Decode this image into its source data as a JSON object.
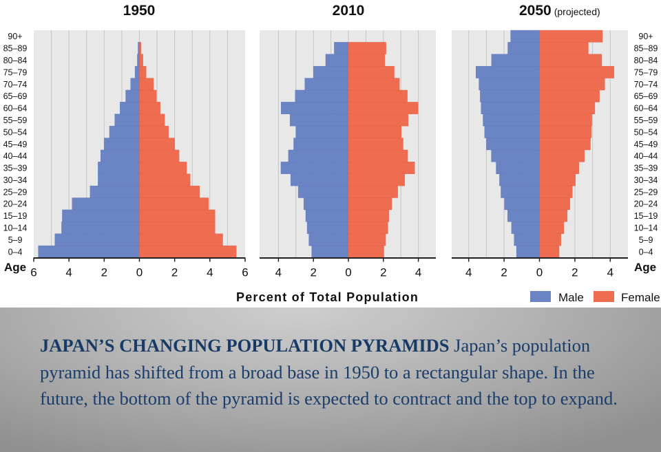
{
  "colors": {
    "male": "#6b84c4",
    "female": "#ee6c4f",
    "panel_bg": "#e8e8e8",
    "gridline": "#c4c4c4",
    "caption_text": "#1a3d6b"
  },
  "caption": {
    "title": "JAPAN’S CHANGING POPULATION PYRAMIDS",
    "body": " Japan’s population pyramid has shifted from a broad base in 1950 to a rectangular shape. In the future, the bottom of the pyramid is expected to contract and the top to expand."
  },
  "chart_data": {
    "type": "bar",
    "subtype": "population-pyramid",
    "xlabel": "Percent of Total Population",
    "ylabel": "Age",
    "legend": {
      "position": "bottom-right",
      "entries": [
        "Male",
        "Female"
      ]
    },
    "grid": true,
    "age_groups": [
      "0–4",
      "5–9",
      "10–14",
      "15–19",
      "20–24",
      "25–29",
      "30–34",
      "35–39",
      "40–44",
      "45–49",
      "50–54",
      "55–59",
      "60–64",
      "65–69",
      "70–74",
      "75–79",
      "80–84",
      "85–89",
      "90+"
    ],
    "panels": [
      {
        "title": "1950",
        "subtitle": "",
        "xlim": [
          -6,
          6
        ],
        "ticks": [
          6,
          4,
          2,
          0,
          2,
          4,
          6
        ],
        "tick_values": [
          -6,
          -4,
          -2,
          0,
          2,
          4,
          6
        ],
        "male": [
          5.74,
          4.8,
          4.42,
          4.38,
          3.82,
          2.8,
          2.35,
          2.35,
          2.2,
          2.0,
          1.7,
          1.4,
          1.1,
          0.78,
          0.5,
          0.25,
          0.12,
          0.08,
          0
        ],
        "female": [
          5.5,
          4.73,
          4.29,
          4.29,
          3.92,
          3.42,
          2.88,
          2.68,
          2.25,
          2.0,
          1.65,
          1.43,
          1.18,
          0.96,
          0.8,
          0.38,
          0.2,
          0.09,
          0
        ]
      },
      {
        "title": "2010",
        "subtitle": "",
        "xlim": [
          -5,
          5
        ],
        "ticks": [
          4,
          2,
          0,
          2,
          4
        ],
        "tick_values": [
          -4,
          -2,
          0,
          2,
          4
        ],
        "male": [
          2.1,
          2.26,
          2.36,
          2.44,
          2.55,
          2.87,
          3.3,
          3.86,
          3.43,
          3.13,
          3.0,
          3.34,
          3.85,
          3.04,
          2.49,
          2.0,
          1.3,
          0.81,
          0
        ],
        "female": [
          2.03,
          2.13,
          2.26,
          2.31,
          2.48,
          2.82,
          3.22,
          3.79,
          3.39,
          3.13,
          3.02,
          3.42,
          3.98,
          3.37,
          2.92,
          2.62,
          2.08,
          2.15,
          0
        ]
      },
      {
        "title": "2050",
        "subtitle": "(projected)",
        "xlim": [
          -5,
          5
        ],
        "ticks": [
          4,
          2,
          0,
          2,
          4
        ],
        "tick_values": [
          -4,
          -2,
          0,
          2,
          4
        ],
        "male": [
          1.3,
          1.43,
          1.58,
          1.8,
          1.98,
          2.18,
          2.26,
          2.45,
          2.72,
          3.0,
          3.1,
          3.19,
          3.3,
          3.35,
          3.42,
          3.59,
          2.71,
          1.79,
          1.63
        ],
        "female": [
          1.11,
          1.21,
          1.38,
          1.57,
          1.72,
          1.86,
          2.03,
          2.23,
          2.54,
          2.88,
          2.93,
          2.96,
          3.13,
          3.39,
          3.69,
          4.21,
          3.52,
          2.76,
          3.56
        ]
      }
    ]
  }
}
